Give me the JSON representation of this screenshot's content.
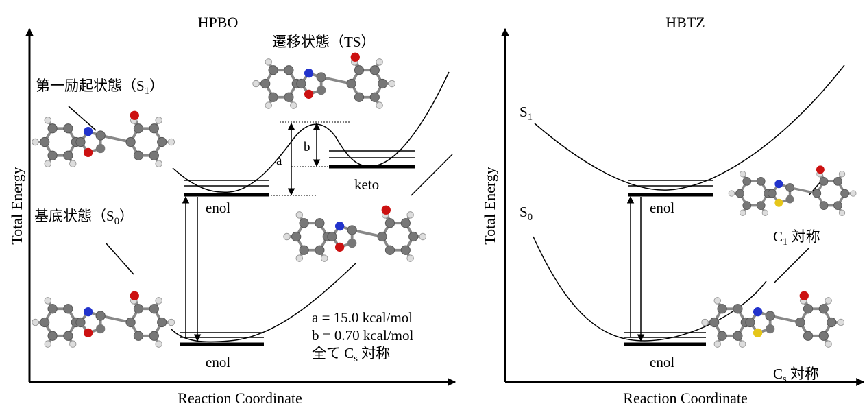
{
  "panels": [
    {
      "title": "HPBO",
      "y_axis_label": "Total Energy",
      "x_axis_label": "Reaction Coordinate",
      "state_labels": [
        {
          "text": "第一励起状態（S",
          "sub": "1",
          "tail": "）"
        },
        {
          "text": "基底状態（S",
          "sub": "0",
          "tail": "）"
        },
        {
          "text": "遷移状態（TS）"
        }
      ],
      "level_labels": [
        "enol",
        "keto",
        "enol"
      ],
      "barrier_labels": [
        "a",
        "b"
      ],
      "notes": [
        "a = 15.0 kcal/mol",
        "b = 0.70 kcal/mol",
        {
          "text": "全て C",
          "sub": "s",
          "tail": " 対称"
        }
      ]
    },
    {
      "title": "HBTZ",
      "y_axis_label": "Total Energy",
      "x_axis_label": "Reaction Coordinate",
      "state_labels": [
        {
          "text": "S",
          "sub": "1"
        },
        {
          "text": "S",
          "sub": "0"
        }
      ],
      "level_labels": [
        "enol",
        "enol"
      ],
      "symmetry_labels": [
        {
          "text": "C",
          "sub": "1",
          "tail": " 対称"
        },
        {
          "text": "C",
          "sub": "s",
          "tail": " 対称"
        }
      ]
    }
  ]
}
